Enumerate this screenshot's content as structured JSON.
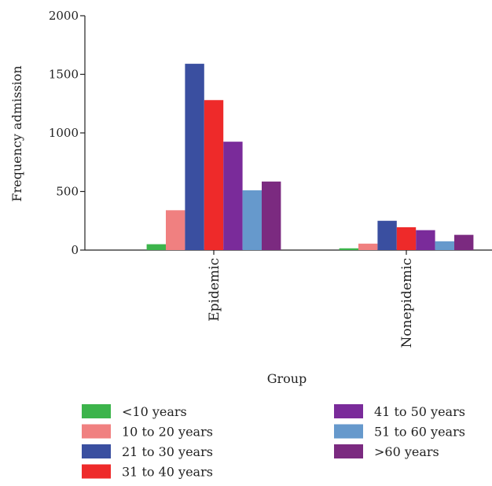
{
  "chart_data": {
    "type": "bar",
    "xlabel": "Group",
    "ylabel": "Frequency admission",
    "ylim": [
      0,
      2000
    ],
    "yticks": [
      0,
      500,
      1000,
      1500,
      2000
    ],
    "categories": [
      "Epidemic",
      "Nonepidemic"
    ],
    "legend_position": "bottom",
    "series": [
      {
        "name": "<10 years",
        "color": "#3cb44b",
        "values": [
          50,
          15
        ]
      },
      {
        "name": "10 to 20 years",
        "color": "#f08080",
        "values": [
          340,
          55
        ]
      },
      {
        "name": "21 to 30 years",
        "color": "#3a4fa0",
        "values": [
          1590,
          250
        ]
      },
      {
        "name": "31 to 40 years",
        "color": "#ee2a2a",
        "values": [
          1280,
          195
        ]
      },
      {
        "name": "41 to 50 years",
        "color": "#7a2b9a",
        "values": [
          925,
          170
        ]
      },
      {
        "name": "51 to 60 years",
        "color": "#6699cc",
        "values": [
          510,
          75
        ]
      },
      {
        "name": ">60 years",
        "color": "#7b2a80",
        "values": [
          585,
          130
        ]
      }
    ]
  }
}
